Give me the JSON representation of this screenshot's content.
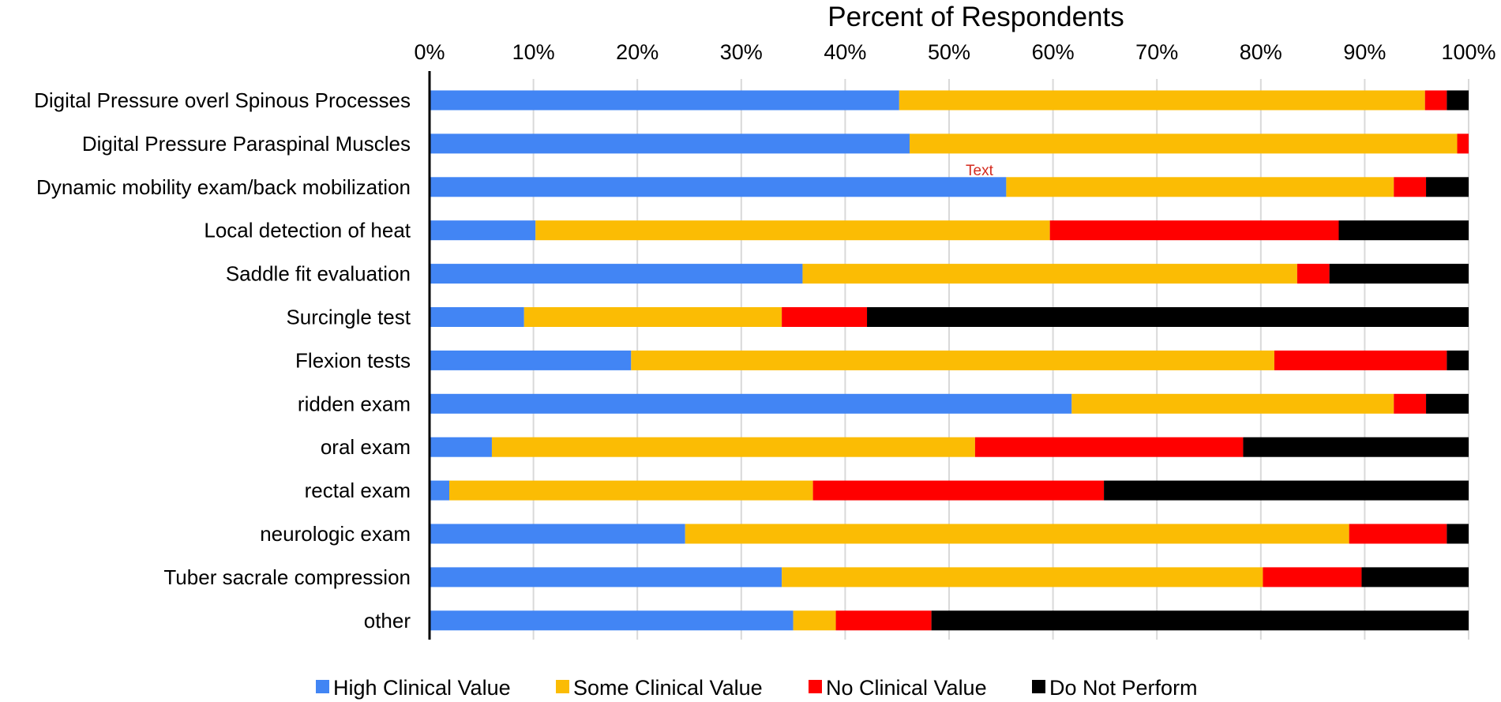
{
  "chart_data": {
    "type": "bar",
    "orientation": "horizontal",
    "stacked": true,
    "title": "Percent of Respondents",
    "xlabel": "Percent of Respondents",
    "ylabel": "",
    "xlim": [
      0,
      100
    ],
    "x_ticks": [
      "0%",
      "10%",
      "20%",
      "30%",
      "40%",
      "50%",
      "60%",
      "70%",
      "80%",
      "90%",
      "100%"
    ],
    "grid": true,
    "legend_position": "bottom",
    "categories": [
      "Digital Pressure overl Spinous Processes",
      "Digital Pressure Paraspinal Muscles",
      "Dynamic mobility exam/back mobilization",
      "Local detection of heat",
      "Saddle fit evaluation",
      "Surcingle test",
      "Flexion tests",
      "ridden exam",
      "oral exam",
      "rectal exam",
      "neurologic exam",
      "Tuber sacrale compression",
      "other"
    ],
    "series": [
      {
        "name": "High Clinical Value",
        "color": "#4285f4",
        "values": [
          45.2,
          46.2,
          55.5,
          10.2,
          35.9,
          9.1,
          19.4,
          61.8,
          6.0,
          1.9,
          24.6,
          33.9,
          35.0
        ]
      },
      {
        "name": "Some Clinical Value",
        "color": "#fbbc04",
        "values": [
          50.6,
          52.7,
          37.3,
          49.5,
          47.6,
          24.8,
          61.9,
          31.0,
          46.5,
          35.0,
          63.9,
          46.3,
          4.1
        ]
      },
      {
        "name": "No Clinical Value",
        "color": "#ff0000",
        "values": [
          2.1,
          1.1,
          3.1,
          27.8,
          3.1,
          8.2,
          16.6,
          3.1,
          25.8,
          28.0,
          9.4,
          9.5,
          9.2
        ]
      },
      {
        "name": "Do Not Perform",
        "color": "#000000",
        "values": [
          2.1,
          0.0,
          4.1,
          12.5,
          13.4,
          57.9,
          2.1,
          4.1,
          21.7,
          35.1,
          2.1,
          10.3,
          51.7
        ]
      }
    ],
    "annotations": [
      {
        "text": "Text",
        "near_category": "Dynamic mobility exam/back mobilization",
        "x_value": 51.6
      }
    ]
  }
}
